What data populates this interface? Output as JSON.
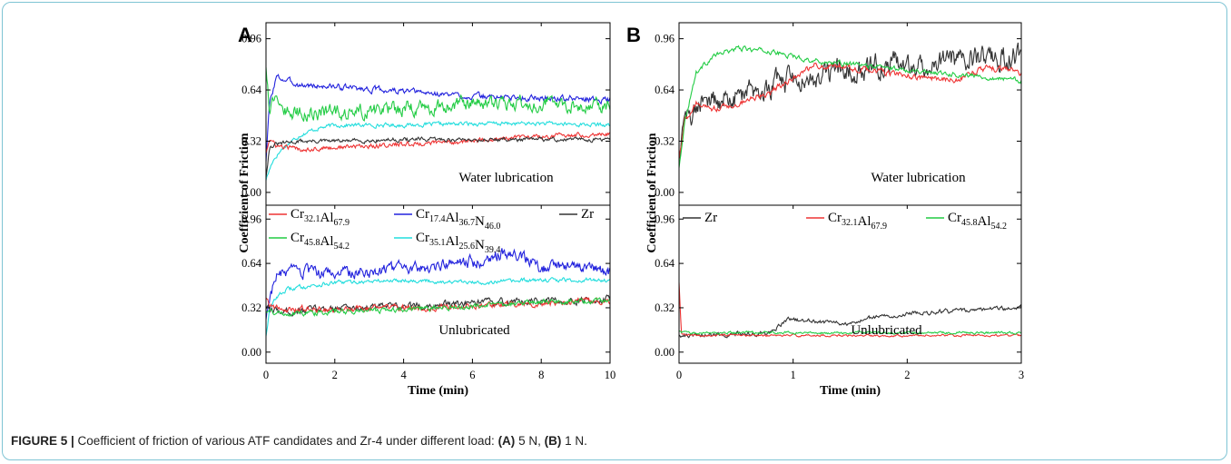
{
  "caption": {
    "figure_label": "FIGURE 5 |",
    "text_1": " Coefficient of friction of various ATF candidates and Zr-4 under different load: ",
    "part_a": "(A)",
    "text_2": " 5 N, ",
    "part_b": "(B)",
    "text_3": " 1 N."
  },
  "colors": {
    "red": "#ee3333",
    "blue": "#2222dd",
    "black": "#333333",
    "green": "#22cc44",
    "cyan": "#22dddd"
  },
  "chart_data": [
    {
      "type": "line",
      "panel": "A",
      "xlabel": "Time (min)",
      "ylabel": "Coefficient of Friction",
      "xlim": [
        0,
        10
      ],
      "x_ticks": [
        "0",
        "2",
        "4",
        "6",
        "8",
        "10"
      ],
      "subplots": [
        {
          "annotation": "Water lubrication",
          "ylim": [
            -0.08,
            1.06
          ],
          "y_ticks": [
            "0.00",
            "0.32",
            "0.64",
            "0.96"
          ],
          "series": [
            {
              "key": "cr17",
              "color": "#2222dd",
              "x": [
                0,
                0.1,
                0.3,
                0.6,
                1,
                2,
                4,
                6,
                8,
                10
              ],
              "y": [
                0.2,
                0.55,
                0.72,
                0.7,
                0.67,
                0.66,
                0.63,
                0.6,
                0.59,
                0.58
              ],
              "noise": 0.015
            },
            {
              "key": "cr45",
              "color": "#22cc44",
              "x": [
                0,
                0.1,
                0.3,
                0.6,
                1,
                2,
                4,
                6,
                8,
                10
              ],
              "y": [
                0.8,
                0.55,
                0.62,
                0.5,
                0.5,
                0.5,
                0.52,
                0.55,
                0.56,
                0.54
              ],
              "noise": 0.035
            },
            {
              "key": "cr35",
              "color": "#22dddd",
              "x": [
                0,
                0.2,
                0.5,
                1,
                1.5,
                2,
                4,
                6,
                8,
                10
              ],
              "y": [
                0.08,
                0.2,
                0.28,
                0.36,
                0.4,
                0.42,
                0.42,
                0.43,
                0.43,
                0.42
              ],
              "noise": 0.01
            },
            {
              "key": "cr32",
              "color": "#ee3333",
              "x": [
                0,
                0.1,
                0.3,
                0.6,
                1,
                2,
                4,
                6,
                8,
                10
              ],
              "y": [
                0.25,
                0.33,
                0.29,
                0.28,
                0.27,
                0.28,
                0.3,
                0.32,
                0.35,
                0.37
              ],
              "noise": 0.012
            },
            {
              "key": "zr",
              "color": "#333333",
              "x": [
                0,
                0.1,
                0.3,
                0.6,
                1,
                2,
                4,
                6,
                8,
                10
              ],
              "y": [
                0.1,
                0.28,
                0.3,
                0.31,
                0.32,
                0.32,
                0.33,
                0.33,
                0.33,
                0.33
              ],
              "noise": 0.01
            }
          ]
        },
        {
          "annotation": "Unlubricated",
          "ylim": [
            -0.08,
            1.06
          ],
          "y_ticks": [
            "0.00",
            "0.32",
            "0.64",
            "0.96"
          ],
          "series": [
            {
              "key": "cr17",
              "color": "#2222dd",
              "x": [
                0,
                0.1,
                0.3,
                0.6,
                1,
                2,
                4,
                6,
                7,
                7.5,
                8,
                9,
                9.5,
                10
              ],
              "y": [
                0.25,
                0.4,
                0.55,
                0.57,
                0.57,
                0.57,
                0.6,
                0.65,
                0.72,
                0.68,
                0.6,
                0.62,
                0.6,
                0.58
              ],
              "noise": 0.035
            },
            {
              "key": "cr35",
              "color": "#22dddd",
              "x": [
                0,
                0.1,
                0.3,
                0.6,
                1,
                2,
                4,
                6,
                8,
                10
              ],
              "y": [
                0.12,
                0.3,
                0.4,
                0.45,
                0.47,
                0.5,
                0.52,
                0.5,
                0.52,
                0.52
              ],
              "noise": 0.012
            },
            {
              "key": "zr",
              "color": "#333333",
              "x": [
                0,
                0.1,
                0.3,
                0.6,
                1,
                2,
                4,
                6,
                8,
                10
              ],
              "y": [
                0.32,
                0.3,
                0.3,
                0.29,
                0.3,
                0.32,
                0.33,
                0.35,
                0.37,
                0.38
              ],
              "noise": 0.02
            },
            {
              "key": "cr32",
              "color": "#ee3333",
              "x": [
                0,
                0.1,
                0.3,
                0.6,
                1,
                2,
                4,
                6,
                8,
                10
              ],
              "y": [
                0.4,
                0.35,
                0.32,
                0.31,
                0.31,
                0.31,
                0.32,
                0.33,
                0.35,
                0.37
              ],
              "noise": 0.018
            },
            {
              "key": "cr45",
              "color": "#22cc44",
              "x": [
                0,
                0.1,
                0.3,
                0.6,
                1,
                2,
                4,
                6,
                8,
                10
              ],
              "y": [
                0.3,
                0.3,
                0.28,
                0.28,
                0.28,
                0.29,
                0.31,
                0.33,
                0.36,
                0.37
              ],
              "noise": 0.015
            }
          ]
        }
      ],
      "legend": [
        {
          "key": "cr32",
          "base": [
            [
              "Cr",
              "32.1"
            ],
            [
              "Al",
              "67.9"
            ]
          ],
          "color": "#ee3333"
        },
        {
          "key": "cr17",
          "base": [
            [
              "Cr",
              "17.4"
            ],
            [
              "Al",
              "36.7"
            ],
            [
              "N",
              "46.0"
            ]
          ],
          "color": "#2222dd"
        },
        {
          "key": "zr",
          "base": [
            [
              "Zr",
              ""
            ]
          ],
          "color": "#333333"
        },
        {
          "key": "cr45",
          "base": [
            [
              "Cr",
              "45.8"
            ],
            [
              "Al",
              "54.2"
            ]
          ],
          "color": "#22cc44"
        },
        {
          "key": "cr35",
          "base": [
            [
              "Cr",
              "35.1"
            ],
            [
              "Al",
              "25.6"
            ],
            [
              "N",
              "39.4"
            ]
          ],
          "color": "#22dddd"
        }
      ],
      "grid": false
    },
    {
      "type": "line",
      "panel": "B",
      "xlabel": "Time (min)",
      "ylabel": "Coefficient of Friction",
      "xlim": [
        0,
        3
      ],
      "x_ticks": [
        "0",
        "1",
        "2",
        "3"
      ],
      "subplots": [
        {
          "annotation": "Water lubrication",
          "ylim": [
            -0.08,
            1.06
          ],
          "y_ticks": [
            "0.00",
            "0.32",
            "0.64",
            "0.96"
          ],
          "series": [
            {
              "key": "zr",
              "color": "#333333",
              "x": [
                0,
                0.05,
                0.15,
                0.3,
                0.6,
                0.9,
                1.2,
                1.5,
                1.8,
                2.1,
                2.4,
                2.7,
                3
              ],
              "y": [
                0.2,
                0.45,
                0.55,
                0.58,
                0.62,
                0.68,
                0.72,
                0.76,
                0.8,
                0.8,
                0.82,
                0.84,
                0.86
              ],
              "noise": 0.06
            },
            {
              "key": "cr32",
              "color": "#ee3333",
              "x": [
                0,
                0.05,
                0.15,
                0.3,
                0.5,
                0.8,
                1,
                1.2,
                1.5,
                1.8,
                2.1,
                2.4,
                2.7,
                3
              ],
              "y": [
                0.2,
                0.45,
                0.55,
                0.52,
                0.55,
                0.63,
                0.72,
                0.8,
                0.78,
                0.75,
                0.72,
                0.7,
                0.78,
                0.75
              ],
              "noise": 0.015
            },
            {
              "key": "cr45",
              "color": "#22cc44",
              "x": [
                0,
                0.05,
                0.15,
                0.3,
                0.5,
                0.8,
                1,
                1.2,
                1.5,
                1.8,
                2.1,
                2.4,
                2.7,
                3
              ],
              "y": [
                0.15,
                0.45,
                0.75,
                0.85,
                0.9,
                0.88,
                0.85,
                0.82,
                0.8,
                0.78,
                0.76,
                0.74,
                0.72,
                0.7
              ],
              "noise": 0.012
            }
          ]
        },
        {
          "annotation": "Unlubricated",
          "ylim": [
            -0.08,
            1.06
          ],
          "y_ticks": [
            "0.00",
            "0.32",
            "0.64",
            "0.96"
          ],
          "series": [
            {
              "key": "zr",
              "color": "#333333",
              "x": [
                0,
                0.05,
                0.5,
                0.8,
                0.95,
                1.2,
                1.5,
                1.7,
                2,
                2.5,
                3
              ],
              "y": [
                0.12,
                0.12,
                0.13,
                0.14,
                0.24,
                0.22,
                0.2,
                0.25,
                0.28,
                0.3,
                0.32
              ],
              "noise": 0.012
            },
            {
              "key": "cr32",
              "color": "#ee3333",
              "x": [
                0,
                0.02,
                0.1,
                3
              ],
              "y": [
                0.5,
                0.13,
                0.12,
                0.12
              ],
              "noise": 0.006
            },
            {
              "key": "cr45",
              "color": "#22cc44",
              "x": [
                0,
                0.05,
                3
              ],
              "y": [
                0.15,
                0.14,
                0.14
              ],
              "noise": 0.007
            }
          ]
        }
      ],
      "legend": [
        {
          "key": "zr",
          "base": [
            [
              "Zr",
              ""
            ]
          ],
          "color": "#333333"
        },
        {
          "key": "cr32",
          "base": [
            [
              "Cr",
              "32.1"
            ],
            [
              "Al",
              "67.9"
            ]
          ],
          "color": "#ee3333"
        },
        {
          "key": "cr45",
          "base": [
            [
              "Cr",
              "45.8"
            ],
            [
              "Al",
              "54.2"
            ]
          ],
          "color": "#22cc44"
        }
      ],
      "grid": false
    }
  ]
}
